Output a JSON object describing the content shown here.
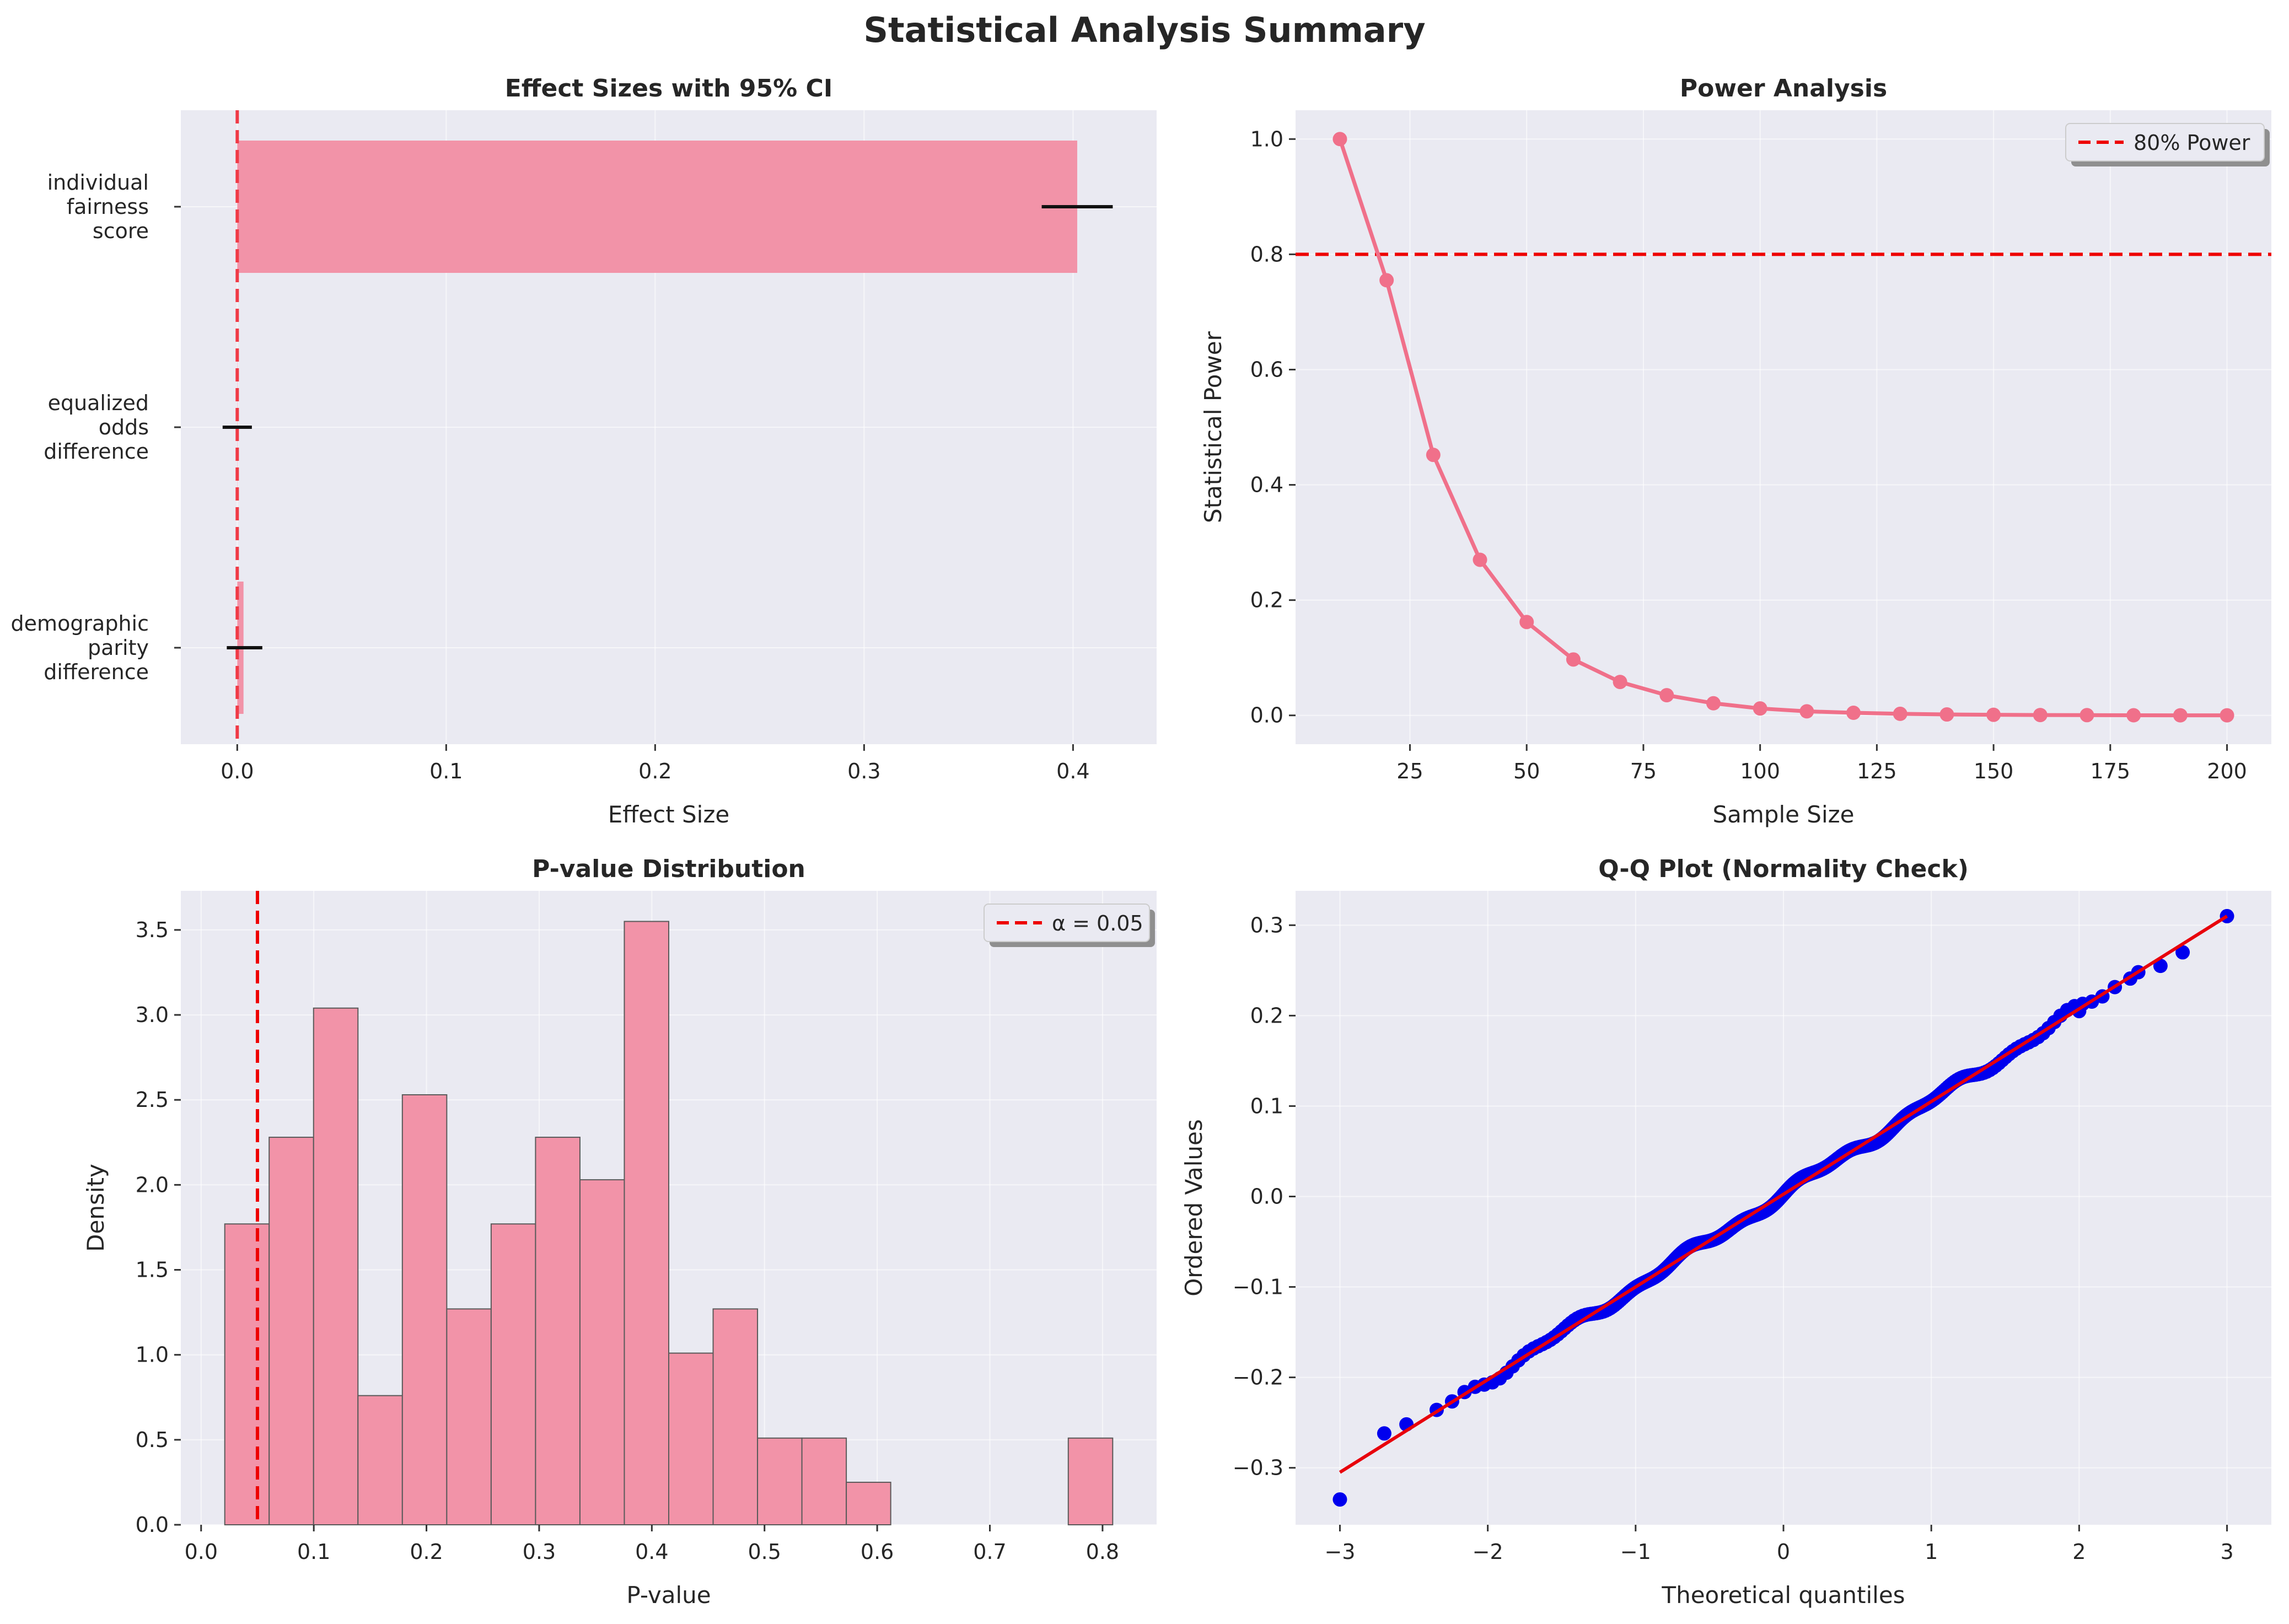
{
  "figure": {
    "suptitle": "Statistical Analysis Summary"
  },
  "colors": {
    "background": "#eaeaf2",
    "grid": "#ffffff",
    "bar": "#f293a8",
    "bar_edge": "#5a5a5a",
    "line": "#f0708a",
    "ref_line": "#ee0000",
    "effect_ref": "#f03a46",
    "points": "#0000ee",
    "fit": "#e8000b",
    "error": "#111111"
  },
  "chart_data": [
    {
      "type": "bar",
      "orientation": "horizontal",
      "title": "Effect Sizes with 95% CI",
      "xlabel": "Effect Size",
      "ylabel": "",
      "xlim": [
        -0.027,
        0.44
      ],
      "xticks": [
        0.0,
        0.1,
        0.2,
        0.3,
        0.4
      ],
      "xtick_labels": [
        "0.0",
        "0.1",
        "0.2",
        "0.3",
        "0.4"
      ],
      "categories": [
        [
          "individual",
          "fairness",
          "score"
        ],
        [
          "equalized",
          "odds",
          "difference"
        ],
        [
          "demographic",
          "parity",
          "difference"
        ]
      ],
      "values": [
        0.402,
        0.0,
        0.003
      ],
      "ci_low": [
        0.385,
        -0.007,
        -0.005
      ],
      "ci_high": [
        0.419,
        0.007,
        0.012
      ],
      "reference_x": 0.0,
      "grid": true
    },
    {
      "type": "line",
      "title": "Power Analysis",
      "xlabel": "Sample Size",
      "ylabel": "Statistical Power",
      "xlim": [
        0.5,
        209.5
      ],
      "ylim": [
        -0.05,
        1.05
      ],
      "xticks": [
        25,
        50,
        75,
        100,
        125,
        150,
        175,
        200
      ],
      "xtick_labels": [
        "25",
        "50",
        "75",
        "100",
        "125",
        "150",
        "175",
        "200"
      ],
      "yticks": [
        0.0,
        0.2,
        0.4,
        0.6,
        0.8,
        1.0
      ],
      "ytick_labels": [
        "0.0",
        "0.2",
        "0.4",
        "0.6",
        "0.8",
        "1.0"
      ],
      "x": [
        10,
        20,
        30,
        40,
        50,
        60,
        70,
        80,
        90,
        100,
        110,
        120,
        130,
        140,
        150,
        160,
        170,
        180,
        190,
        200
      ],
      "y": [
        1.0,
        0.755,
        0.452,
        0.27,
        0.162,
        0.097,
        0.058,
        0.035,
        0.021,
        0.012,
        0.007,
        0.0045,
        0.0027,
        0.0016,
        0.001,
        0.0006,
        0.0004,
        0.0002,
        0.0001,
        0.0001
      ],
      "reference_y": 0.8,
      "legend": [
        {
          "label": "80% Power",
          "style": "dashed"
        }
      ],
      "legend_position": "top-right",
      "grid": true
    },
    {
      "type": "bar",
      "subtype": "histogram",
      "title": "P-value Distribution",
      "xlabel": "P-value",
      "ylabel": "Density",
      "xlim": [
        -0.018,
        0.848
      ],
      "ylim": [
        0,
        3.73
      ],
      "xticks": [
        0.0,
        0.1,
        0.2,
        0.3,
        0.4,
        0.5,
        0.6,
        0.7,
        0.8
      ],
      "xtick_labels": [
        "0.0",
        "0.1",
        "0.2",
        "0.3",
        "0.4",
        "0.5",
        "0.6",
        "0.7",
        "0.8"
      ],
      "yticks": [
        0.0,
        0.5,
        1.0,
        1.5,
        2.0,
        2.5,
        3.0,
        3.5
      ],
      "ytick_labels": [
        "0.0",
        "0.5",
        "1.0",
        "1.5",
        "2.0",
        "2.5",
        "3.0",
        "3.5"
      ],
      "bin_start": 0.021,
      "bin_width": 0.0394,
      "values": [
        1.77,
        2.28,
        3.04,
        0.76,
        2.53,
        1.27,
        1.77,
        2.28,
        2.03,
        3.55,
        1.01,
        1.27,
        0.51,
        0.51,
        0.25,
        0,
        0,
        0,
        0,
        0.51
      ],
      "reference_x": 0.05,
      "legend": [
        {
          "label": "α = 0.05",
          "style": "dashed"
        }
      ],
      "legend_position": "top-right",
      "grid": true
    },
    {
      "type": "scatter",
      "title": "Q-Q Plot (Normality Check)",
      "xlabel": "Theoretical quantiles",
      "ylabel": "Ordered Values",
      "xlim": [
        -3.3,
        3.3
      ],
      "ylim": [
        -0.363,
        0.338
      ],
      "xticks": [
        -3,
        -2,
        -1,
        0,
        1,
        2,
        3
      ],
      "xtick_labels": [
        "−3",
        "−2",
        "−1",
        "0",
        "1",
        "2",
        "3"
      ],
      "yticks": [
        -0.3,
        -0.2,
        -0.1,
        0.0,
        0.1,
        0.2,
        0.3
      ],
      "ytick_labels": [
        "−0.3",
        "−0.2",
        "−0.1",
        "0.0",
        "0.1",
        "0.2",
        "0.3"
      ],
      "n_points": 1000,
      "fit_line": {
        "slope": 0.1025,
        "intercept": 0.0025
      },
      "extreme_points": [
        {
          "x": -3.0,
          "y": -0.335
        },
        {
          "x": -2.7,
          "y": -0.262
        },
        {
          "x": -2.55,
          "y": -0.252
        },
        {
          "x": 2.0,
          "y": 0.205
        },
        {
          "x": 2.4,
          "y": 0.248
        },
        {
          "x": 2.55,
          "y": 0.255
        },
        {
          "x": 2.7,
          "y": 0.27
        },
        {
          "x": 3.0,
          "y": 0.31
        }
      ],
      "grid": true
    }
  ]
}
